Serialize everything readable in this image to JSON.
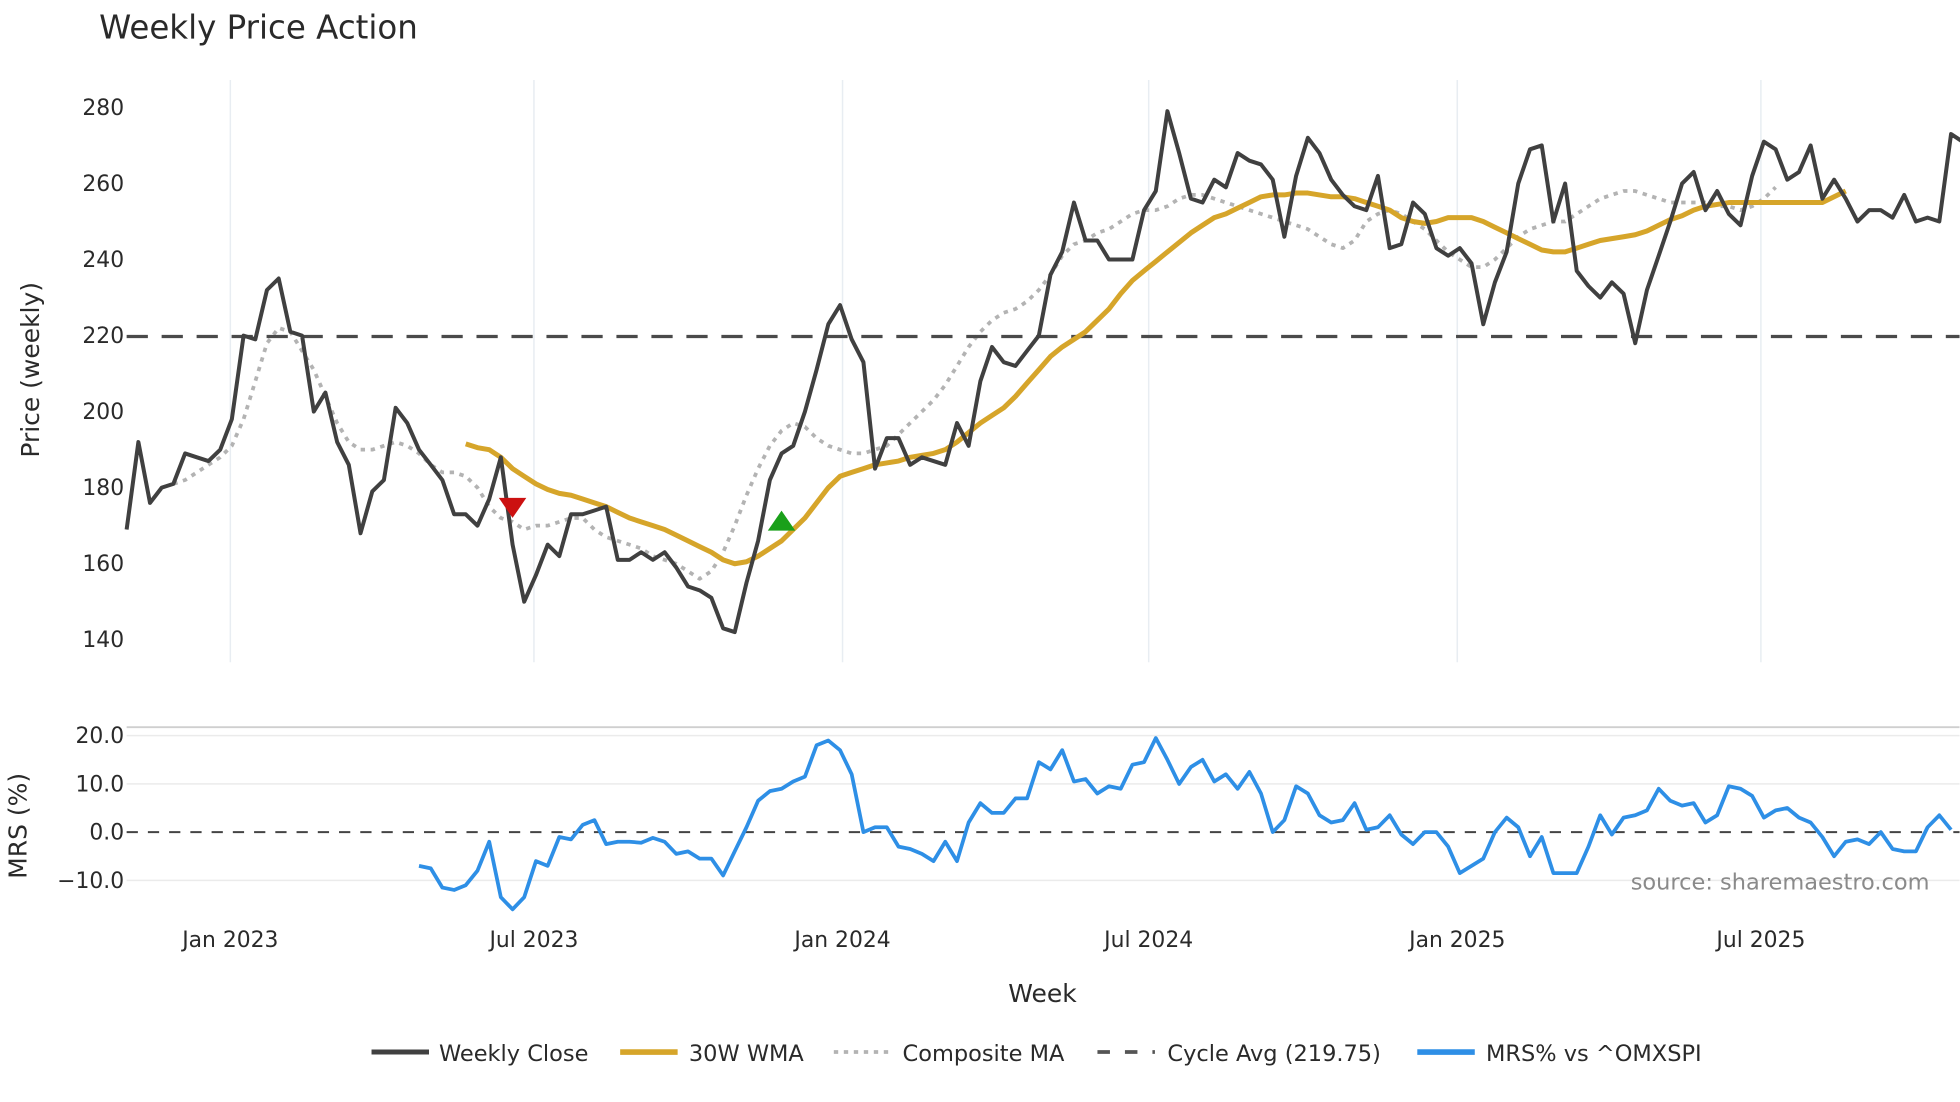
{
  "chart_data": {
    "type": "line",
    "title": "Weekly Price Action",
    "xlabel": "Week",
    "panels": [
      {
        "name": "price",
        "ylabel": "Price (weekly)",
        "ylim": [
          133,
          287
        ],
        "yticks": [
          140,
          160,
          180,
          200,
          220,
          240,
          260,
          280
        ],
        "grid": true
      },
      {
        "name": "mrs",
        "ylabel": "MRS (%)",
        "ylim": [
          -13,
          22
        ],
        "yticks": [
          "20.0",
          "10.0",
          "0.0",
          "−10.0"
        ],
        "ytick_values": [
          20,
          10,
          0,
          -10
        ],
        "grid": true
      }
    ],
    "x_ticks": [
      "Jan 2023",
      "Jul 2023",
      "Jan 2024",
      "Jul 2024",
      "Jan 2025",
      "Jul 2025"
    ],
    "x_tick_pos": [
      184,
      427,
      674,
      919,
      1166,
      1409
    ],
    "x_start": 101,
    "x_step": 9.36,
    "series": [
      {
        "name": "Weekly Close",
        "color": "#404040",
        "style": "solid",
        "start_index": 0,
        "values": [
          169,
          192,
          176,
          180,
          181,
          189,
          188,
          187,
          190,
          198,
          220,
          219,
          232,
          235,
          221,
          220,
          200,
          205,
          192,
          186,
          168,
          179,
          182,
          201,
          197,
          190,
          186,
          182,
          173,
          173,
          170,
          177,
          188,
          165,
          150,
          157,
          165,
          162,
          173,
          173,
          174,
          175,
          161,
          161,
          163,
          161,
          163,
          159,
          154,
          153,
          151,
          143,
          142,
          155,
          166,
          182,
          189,
          191,
          200,
          211,
          223,
          228,
          219,
          213,
          185,
          193,
          193,
          186,
          188,
          187,
          186,
          197,
          191,
          208,
          217,
          213,
          212,
          216,
          220,
          236,
          242,
          255,
          245,
          245,
          240,
          240,
          240,
          253,
          258,
          279,
          268,
          256,
          255,
          261,
          259,
          268,
          266,
          265,
          261,
          246,
          262,
          272,
          268,
          261,
          257,
          254,
          253,
          262,
          243,
          244,
          255,
          252,
          243,
          241,
          243,
          239,
          223,
          234,
          242,
          260,
          269,
          270,
          250,
          260,
          237,
          233,
          230,
          234,
          231,
          218,
          232,
          241,
          250,
          260,
          263,
          253,
          258,
          252,
          249,
          262,
          271,
          269,
          261,
          263,
          270,
          256,
          261,
          256,
          250,
          253,
          253,
          251,
          257,
          250,
          251,
          250,
          273,
          271
        ]
      },
      {
        "name": "30W WMA",
        "color": "#d6a52a",
        "style": "solid",
        "start_index": 29,
        "values": [
          191.5,
          190.5,
          190,
          188,
          185,
          183,
          181,
          179.5,
          178.5,
          178,
          177,
          176,
          175,
          173.5,
          172,
          171,
          170,
          169,
          167.5,
          166,
          164.5,
          163,
          161,
          160,
          160.5,
          162,
          164,
          166,
          169,
          172,
          176,
          180,
          183,
          184,
          185,
          186,
          186.5,
          187,
          188,
          188.5,
          189,
          190,
          192,
          194.5,
          197,
          199,
          201,
          204,
          207.5,
          211,
          214.5,
          217,
          219,
          221,
          224,
          227,
          231,
          234.5,
          237,
          239.5,
          242,
          244.5,
          247,
          249,
          251,
          252,
          253.5,
          255,
          256.5,
          257,
          257,
          257.5,
          257.5,
          257,
          256.5,
          256.5,
          256,
          255,
          254,
          253,
          251,
          250,
          249.5,
          250,
          251,
          251,
          251,
          250,
          248.5,
          247,
          245.5,
          244,
          242.5,
          242,
          242,
          243,
          244,
          245,
          245.5,
          246,
          246.5,
          247.5,
          249,
          250.5,
          251.5,
          253,
          254,
          254.5,
          255,
          255,
          255,
          255,
          255,
          255,
          255,
          255,
          255,
          256.5,
          258
        ]
      },
      {
        "name": "Composite MA",
        "color": "#b3b3b3",
        "style": "dotted",
        "start_index": 4,
        "values": [
          181,
          182,
          184,
          186,
          188,
          191,
          198,
          208,
          218,
          222,
          221,
          216,
          211,
          204,
          197,
          192,
          190,
          190,
          191,
          192,
          191,
          189,
          186,
          184,
          184,
          183,
          180,
          175,
          172,
          171,
          169,
          170,
          170,
          171,
          172,
          172,
          169,
          167,
          166,
          165,
          164,
          162,
          161,
          160,
          158,
          156,
          158,
          163,
          170,
          178,
          185,
          191,
          195,
          197,
          196,
          193,
          191,
          190,
          189,
          189,
          190,
          191,
          194,
          197,
          200,
          203,
          207,
          212,
          217,
          221,
          224,
          226,
          227,
          229,
          232,
          236,
          241,
          244,
          245,
          247,
          248,
          250,
          252,
          253,
          253,
          254,
          256,
          257,
          257,
          256,
          255,
          254,
          253,
          252,
          251,
          250,
          249,
          248,
          246,
          244,
          243,
          245,
          250,
          252,
          253,
          252,
          250,
          248,
          245,
          242,
          240,
          238,
          238,
          240,
          243,
          246,
          248,
          249,
          250,
          250,
          252,
          254,
          256,
          257,
          258,
          258,
          257,
          256,
          255,
          255,
          255,
          255,
          254,
          254,
          253,
          254,
          256,
          259
        ]
      },
      {
        "name": "Cycle Avg (219.75)",
        "color": "#4a4a4a",
        "style": "dashed",
        "constant": 219.75
      },
      {
        "name": "MRS% vs ^OMXSPI",
        "color": "#2e8fe6",
        "style": "solid",
        "panel": "mrs",
        "start_index": 25,
        "values": [
          -7,
          -7.5,
          -11.5,
          -12,
          -11,
          -8,
          -2,
          -13.5,
          -16,
          -13.5,
          -6,
          -7,
          -1,
          -1.5,
          1.5,
          2.5,
          -2.5,
          -2,
          -2,
          -2.2,
          -1.2,
          -2,
          -4.5,
          -4,
          -5.5,
          -5.5,
          -9,
          -4,
          1,
          6.5,
          8.5,
          9,
          10.5,
          11.5,
          18,
          19,
          17,
          12,
          0,
          1,
          1,
          -3,
          -3.5,
          -4.5,
          -6,
          -2,
          -6,
          2,
          6,
          4,
          4,
          7,
          7,
          14.5,
          13,
          17,
          10.5,
          11,
          8,
          9.5,
          9,
          14,
          14.5,
          19.5,
          15,
          10,
          13.5,
          15,
          10.5,
          12,
          9,
          12.5,
          8,
          0,
          2.5,
          9.5,
          8,
          3.5,
          2,
          2.5,
          6,
          0.5,
          1,
          3.5,
          -0.5,
          -2.5,
          0,
          0,
          -3,
          -8.5,
          -7,
          -5.5,
          0,
          3,
          1,
          -5,
          -1,
          -8.5,
          -8.5,
          -8.5,
          -3,
          3.5,
          -0.5,
          3,
          3.5,
          4.5,
          9,
          6.5,
          5.5,
          6,
          2,
          3.5,
          9.5,
          9,
          7.5,
          3,
          4.5,
          5,
          3,
          2,
          -1,
          -5,
          -2,
          -1.5,
          -2.5,
          0,
          -3.5,
          -4,
          -4,
          1,
          3.5,
          0.5
        ]
      }
    ],
    "markers": [
      {
        "type": "sell",
        "shape": "triangle-down",
        "color": "#cc1111",
        "index": 33,
        "value": 175
      },
      {
        "type": "buy",
        "shape": "triangle-up",
        "color": "#1aa01a",
        "index": 56,
        "value": 171
      }
    ],
    "legend": {
      "position": "bottom",
      "items": [
        "Weekly Close",
        "30W WMA",
        "Composite MA",
        "Cycle Avg (219.75)",
        "MRS% vs ^OMXSPI"
      ]
    },
    "annotation": "source: sharemaestro.com"
  }
}
